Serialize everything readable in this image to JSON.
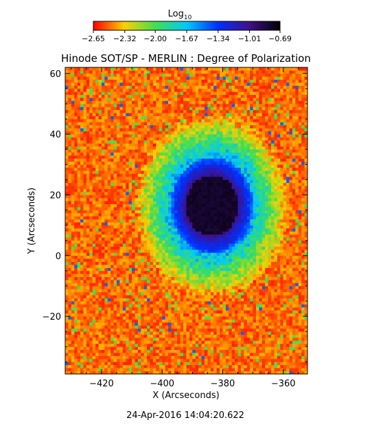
{
  "chart_data": {
    "type": "heatmap",
    "title": "Hinode SOT/SP - MERLIN : Degree of Polarization",
    "colorbar": {
      "label_base": "Log",
      "label_sub": "10",
      "ticks": [
        -2.65,
        -2.32,
        -2.0,
        -1.67,
        -1.34,
        -1.01,
        -0.69
      ],
      "tick_labels": [
        "−2.65",
        "−2.32",
        "−2.00",
        "−1.67",
        "−1.34",
        "−1.01",
        "−0.69"
      ],
      "range": [
        -2.65,
        -0.69
      ],
      "colormap": [
        "#ff0000",
        "#ffd000",
        "#40e050",
        "#00c8ff",
        "#0030ff",
        "#40108a",
        "#000000"
      ]
    },
    "xlabel": "X (Arcseconds)",
    "ylabel": "Y (Arcseconds)",
    "xlim": [
      -432,
      -352
    ],
    "ylim": [
      -39,
      62
    ],
    "xticks": [
      -420,
      -400,
      -380,
      -360
    ],
    "xtick_labels": [
      "−420",
      "−400",
      "−380",
      "−360"
    ],
    "yticks": [
      -20,
      0,
      20,
      40,
      60
    ],
    "ytick_labels": [
      "−20",
      "0",
      "20",
      "40",
      "60"
    ],
    "features": {
      "umbra_center": [
        -384,
        16
      ],
      "umbra_radius": 10,
      "penumbra_radius": 16,
      "plage_outer_radius": 30,
      "background_value": -2.5,
      "umbra_value": -0.75
    },
    "date_label": "24-Apr-2016 14:04:20.622"
  }
}
